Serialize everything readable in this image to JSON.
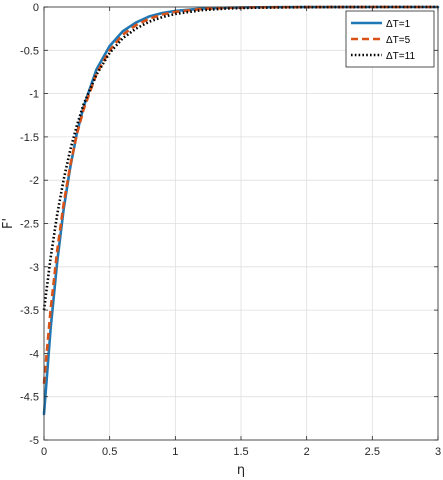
{
  "chart_data": {
    "type": "line",
    "title": "",
    "xlabel": "η",
    "ylabel": "F'",
    "xlim": [
      0,
      3
    ],
    "ylim": [
      -5,
      0
    ],
    "xticks": [
      0,
      0.5,
      1,
      1.5,
      2,
      2.5,
      3
    ],
    "xtick_labels": [
      "0",
      "0.5",
      "1",
      "1.5",
      "2",
      "2.5",
      "3"
    ],
    "yticks": [
      0,
      -0.5,
      -1,
      -1.5,
      -2,
      -2.5,
      -3,
      -3.5,
      -4,
      -4.5,
      -5
    ],
    "ytick_labels": [
      "0",
      "-0.5",
      "-1",
      "-1.5",
      "-2",
      "-2.5",
      "-3",
      "-3.5",
      "-4",
      "-4.5",
      "-5"
    ],
    "grid": true,
    "legend_position": "top-right",
    "series": [
      {
        "name": "ΔT=1",
        "color": "#1f77b4",
        "style": "solid",
        "x": [
          0,
          0.05,
          0.1,
          0.15,
          0.2,
          0.25,
          0.3,
          0.4,
          0.5,
          0.6,
          0.7,
          0.8,
          0.9,
          1.0,
          1.2,
          1.4,
          1.6,
          2.0,
          2.5,
          3.0
        ],
        "y": [
          -4.7,
          -3.72,
          -2.95,
          -2.33,
          -1.85,
          -1.46,
          -1.16,
          -0.72,
          -0.45,
          -0.28,
          -0.18,
          -0.11,
          -0.07,
          -0.045,
          -0.018,
          -0.008,
          -0.003,
          -0.001,
          0,
          0
        ]
      },
      {
        "name": "ΔT=5",
        "color": "#d95319",
        "style": "dashed",
        "x": [
          0,
          0.05,
          0.1,
          0.15,
          0.2,
          0.25,
          0.3,
          0.4,
          0.5,
          0.6,
          0.7,
          0.8,
          0.9,
          1.0,
          1.2,
          1.4,
          1.6,
          2.0,
          2.5,
          3.0
        ],
        "y": [
          -4.35,
          -3.5,
          -2.82,
          -2.27,
          -1.83,
          -1.47,
          -1.19,
          -0.77,
          -0.5,
          -0.32,
          -0.21,
          -0.135,
          -0.087,
          -0.056,
          -0.023,
          -0.01,
          -0.004,
          -0.001,
          0,
          0
        ]
      },
      {
        "name": "ΔT=11",
        "color": "#000000",
        "style": "dotted",
        "x": [
          0,
          0.05,
          0.1,
          0.15,
          0.2,
          0.25,
          0.3,
          0.4,
          0.5,
          0.6,
          0.7,
          0.8,
          0.9,
          1.0,
          1.2,
          1.4,
          1.6,
          2.0,
          2.5,
          3.0
        ],
        "y": [
          -3.5,
          -2.9,
          -2.4,
          -1.99,
          -1.65,
          -1.37,
          -1.13,
          -0.78,
          -0.53,
          -0.36,
          -0.25,
          -0.17,
          -0.117,
          -0.08,
          -0.037,
          -0.017,
          -0.008,
          -0.002,
          0,
          0
        ]
      }
    ]
  }
}
